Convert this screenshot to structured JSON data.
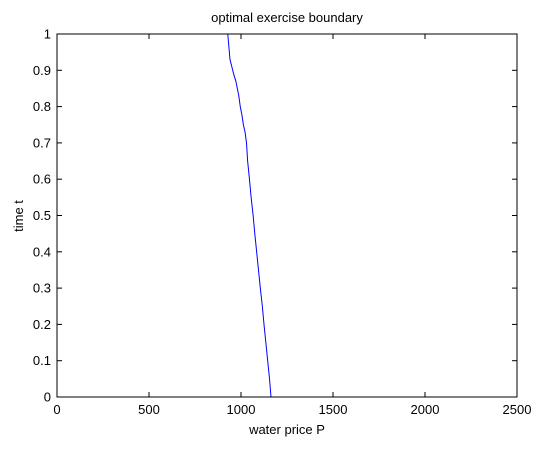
{
  "chart_data": {
    "type": "line",
    "title": "optimal exercise boundary",
    "xlabel": "water price P",
    "ylabel": "time t",
    "xlim": [
      0,
      2500
    ],
    "ylim": [
      0,
      1
    ],
    "xticks": [
      0,
      500,
      1000,
      1500,
      2000,
      2500
    ],
    "yticks": [
      0,
      0.1,
      0.2,
      0.3,
      0.4,
      0.5,
      0.6,
      0.7,
      0.8,
      0.9,
      1
    ],
    "xtick_labels": [
      "0",
      "500",
      "1000",
      "1500",
      "2000",
      "2500"
    ],
    "ytick_labels": [
      "0",
      "0.1",
      "0.2",
      "0.3",
      "0.4",
      "0.5",
      "0.6",
      "0.7",
      "0.8",
      "0.9",
      "1"
    ],
    "grid": false,
    "series": [
      {
        "color": "#0000ff",
        "x": [
          1163,
          1155,
          1145,
          1135,
          1125,
          1116,
          1105,
          1095,
          1085,
          1075,
          1066,
          1055,
          1046,
          1036,
          1030,
          1022,
          1013,
          1004,
          996,
          988,
          980,
          972,
          960,
          950,
          940,
          935,
          928
        ],
        "y": [
          0,
          0.05,
          0.1,
          0.15,
          0.2,
          0.25,
          0.3,
          0.35,
          0.4,
          0.45,
          0.5,
          0.55,
          0.6,
          0.65,
          0.7,
          0.73,
          0.75,
          0.78,
          0.8,
          0.83,
          0.85,
          0.87,
          0.89,
          0.91,
          0.93,
          0.96,
          1
        ]
      }
    ]
  }
}
